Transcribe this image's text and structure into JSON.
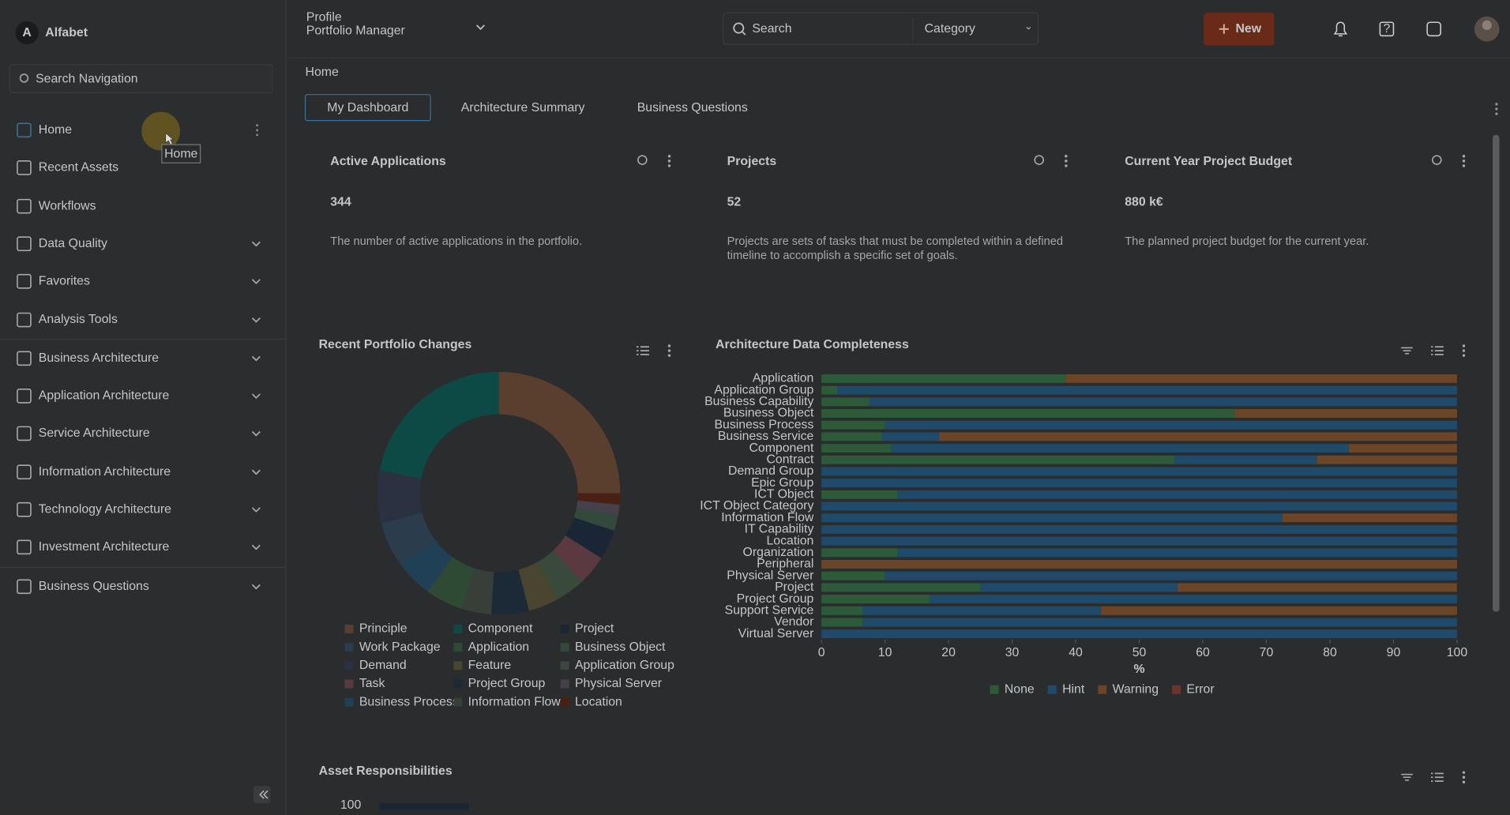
{
  "header": {
    "logo": "A",
    "app_name": "Alfabet",
    "profile_label": "Profile",
    "profile": "Portfolio Manager",
    "search_placeholder": "Search",
    "category_placeholder": "Category",
    "new_button": "New"
  },
  "sidebar": {
    "search_placeholder": "Search Navigation",
    "items": [
      "Home",
      "Recent Assets",
      "Workflows",
      "Data Quality",
      "Favorites",
      "Analysis Tools",
      "Business Architecture",
      "Application Architecture",
      "Service Architecture",
      "Information Architecture",
      "Technology Architecture",
      "Investment Architecture",
      "Business Questions"
    ],
    "tooltip": "Home"
  },
  "breadcrumb": "Home",
  "tabs": [
    "My Dashboard",
    "Architecture Summary",
    "Business Questions"
  ],
  "kpis": [
    {
      "title": "Active Applications",
      "value": "344",
      "description": "The number of active applications in the portfolio."
    },
    {
      "title": "Projects",
      "value": "52",
      "description": "Projects are sets of tasks that must be completed within a defined timeline to accomplish a specific set of goals."
    },
    {
      "title": "Current Year Project Budget",
      "value": "880 k€",
      "description": "The planned project budget for the current year."
    }
  ],
  "chart_data": [
    {
      "type": "pie",
      "donut": true,
      "title": "Recent Portfolio Changes",
      "categories": [
        "Principle",
        "Component",
        "Project",
        "Work Package",
        "Application",
        "Business Object",
        "Demand",
        "Feature",
        "Application Group",
        "Task",
        "Project Group",
        "Physical Server",
        "Business Process",
        "Information Flow",
        "Location"
      ],
      "values": [
        25,
        22,
        4,
        6,
        5,
        2,
        7,
        4,
        4,
        4,
        5,
        1.5,
        5,
        4,
        1.5
      ],
      "colors": [
        "#5a3e2e",
        "#0e4a45",
        "#1a2535",
        "#2b3d4d",
        "#2e4a35",
        "#33493c",
        "#2a3140",
        "#4a4530",
        "#3a4a3a",
        "#5a3a40",
        "#1c2a38",
        "#45404a",
        "#1f4055",
        "#383f38",
        "#4a2015"
      ]
    },
    {
      "type": "bar",
      "orientation": "horizontal",
      "stacked": true,
      "title": "Architecture Data Completeness",
      "categories": [
        "Application",
        "Application Group",
        "Business Capability",
        "Business Object",
        "Business Process",
        "Business Service",
        "Component",
        "Contract",
        "Demand Group",
        "Epic Group",
        "ICT Object",
        "ICT Object Category",
        "Information Flow",
        "IT Capability",
        "Location",
        "Organization",
        "Peripheral",
        "Physical Server",
        "Project",
        "Project Group",
        "Support Service",
        "Vendor",
        "Virtual Server"
      ],
      "series": [
        {
          "name": "None",
          "color": "#2d5a38",
          "values": [
            38.5,
            2.5,
            7.5,
            65,
            10,
            9.5,
            11,
            55.5,
            0,
            0,
            12,
            0,
            0,
            0,
            0,
            12,
            0,
            10,
            25,
            17,
            6.5,
            6.5,
            0
          ]
        },
        {
          "name": "Hint",
          "color": "#1f4a6a",
          "values": [
            0,
            97.5,
            92.5,
            0,
            90,
            9,
            72,
            22.5,
            100,
            100,
            88,
            100,
            72.5,
            100,
            100,
            88,
            0,
            90,
            31,
            83,
            37.5,
            93.5,
            100
          ]
        },
        {
          "name": "Warning",
          "color": "#6a4528",
          "values": [
            61.5,
            0,
            0,
            35,
            0,
            81.5,
            17,
            22,
            0,
            0,
            0,
            0,
            27.5,
            0,
            0,
            0,
            100,
            0,
            44,
            0,
            56,
            0,
            0
          ]
        },
        {
          "name": "Error",
          "color": "#6a3530",
          "values": [
            0,
            0,
            0,
            0,
            0,
            0,
            0,
            0,
            0,
            0,
            0,
            0,
            0,
            0,
            0,
            0,
            0,
            0,
            0,
            0,
            0,
            0,
            0
          ]
        }
      ],
      "xlim": [
        0,
        100
      ],
      "xticks": [
        0,
        10,
        20,
        30,
        40,
        50,
        60,
        70,
        80,
        90,
        100
      ],
      "xlabel": "%",
      "legend": "bottom"
    }
  ],
  "asset_responsibilities": {
    "title": "Asset Responsibilities",
    "ytick": "100"
  }
}
